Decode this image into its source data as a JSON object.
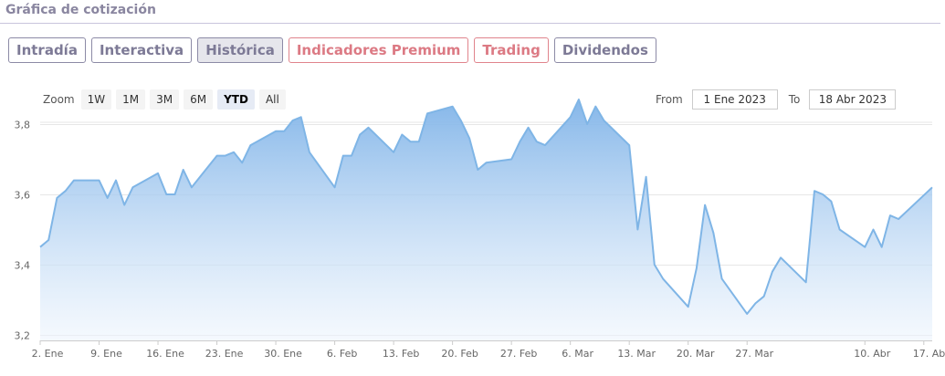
{
  "section": {
    "title": "Gráfica de cotización"
  },
  "tabs": [
    {
      "label": "Intradía",
      "premium": false,
      "active": false
    },
    {
      "label": "Interactiva",
      "premium": false,
      "active": false
    },
    {
      "label": "Histórica",
      "premium": false,
      "active": true
    },
    {
      "label": "Indicadores Premium",
      "premium": true,
      "active": false
    },
    {
      "label": "Trading",
      "premium": true,
      "active": false
    },
    {
      "label": "Dividendos",
      "premium": false,
      "active": false
    }
  ],
  "zoom": {
    "label": "Zoom",
    "buttons": [
      "1W",
      "1M",
      "3M",
      "6M",
      "YTD",
      "All"
    ],
    "selected": "YTD"
  },
  "range": {
    "from_label": "From",
    "from_value": "1 Ene 2023",
    "to_label": "To",
    "to_value": "18 Abr 2023"
  },
  "colors": {
    "line": "#7fb5e6",
    "fill_top": "#7fb3e8",
    "fill_bottom": "#eef5fd",
    "grid": "#e6e6e6",
    "tab_border": "#8c8aa6",
    "premium": "#dc7a84"
  },
  "chart_data": {
    "type": "area",
    "title": "",
    "xlabel": "",
    "ylabel": "",
    "ylim": [
      3.2,
      3.8
    ],
    "yticks": [
      {
        "value": 3.2,
        "label": "3,2"
      },
      {
        "value": 3.4,
        "label": "3,4"
      },
      {
        "value": 3.6,
        "label": "3,6"
      },
      {
        "value": 3.8,
        "label": "3,8"
      }
    ],
    "xlim": [
      "2023-01-02",
      "2023-04-18"
    ],
    "xticks": [
      {
        "date": "2023-01-02",
        "label": "2. Ene"
      },
      {
        "date": "2023-01-09",
        "label": "9. Ene"
      },
      {
        "date": "2023-01-16",
        "label": "16. Ene"
      },
      {
        "date": "2023-01-23",
        "label": "23. Ene"
      },
      {
        "date": "2023-01-30",
        "label": "30. Ene"
      },
      {
        "date": "2023-02-06",
        "label": "6. Feb"
      },
      {
        "date": "2023-02-13",
        "label": "13. Feb"
      },
      {
        "date": "2023-02-20",
        "label": "20. Feb"
      },
      {
        "date": "2023-02-27",
        "label": "27. Feb"
      },
      {
        "date": "2023-03-06",
        "label": "6. Mar"
      },
      {
        "date": "2023-03-13",
        "label": "13. Mar"
      },
      {
        "date": "2023-03-20",
        "label": "20. Mar"
      },
      {
        "date": "2023-03-27",
        "label": "27. Mar"
      },
      {
        "date": "2023-04-10",
        "label": "10. Abr"
      },
      {
        "date": "2023-04-17",
        "label": "17. Abr"
      }
    ],
    "grid": true,
    "series": [
      {
        "points": [
          [
            "2023-01-02",
            3.45
          ],
          [
            "2023-01-03",
            3.47
          ],
          [
            "2023-01-04",
            3.59
          ],
          [
            "2023-01-05",
            3.61
          ],
          [
            "2023-01-06",
            3.64
          ],
          [
            "2023-01-09",
            3.64
          ],
          [
            "2023-01-10",
            3.59
          ],
          [
            "2023-01-11",
            3.64
          ],
          [
            "2023-01-12",
            3.57
          ],
          [
            "2023-01-13",
            3.62
          ],
          [
            "2023-01-16",
            3.66
          ],
          [
            "2023-01-17",
            3.6
          ],
          [
            "2023-01-18",
            3.6
          ],
          [
            "2023-01-19",
            3.67
          ],
          [
            "2023-01-20",
            3.62
          ],
          [
            "2023-01-23",
            3.71
          ],
          [
            "2023-01-24",
            3.71
          ],
          [
            "2023-01-25",
            3.72
          ],
          [
            "2023-01-26",
            3.69
          ],
          [
            "2023-01-27",
            3.74
          ],
          [
            "2023-01-30",
            3.78
          ],
          [
            "2023-01-31",
            3.78
          ],
          [
            "2023-02-01",
            3.81
          ],
          [
            "2023-02-02",
            3.82
          ],
          [
            "2023-02-03",
            3.72
          ],
          [
            "2023-02-06",
            3.62
          ],
          [
            "2023-02-07",
            3.71
          ],
          [
            "2023-02-08",
            3.71
          ],
          [
            "2023-02-09",
            3.77
          ],
          [
            "2023-02-10",
            3.79
          ],
          [
            "2023-02-13",
            3.72
          ],
          [
            "2023-02-14",
            3.77
          ],
          [
            "2023-02-15",
            3.75
          ],
          [
            "2023-02-16",
            3.75
          ],
          [
            "2023-02-17",
            3.83
          ],
          [
            "2023-02-20",
            3.85
          ],
          [
            "2023-02-21",
            3.81
          ],
          [
            "2023-02-22",
            3.76
          ],
          [
            "2023-02-23",
            3.67
          ],
          [
            "2023-02-24",
            3.69
          ],
          [
            "2023-02-27",
            3.7
          ],
          [
            "2023-02-28",
            3.75
          ],
          [
            "2023-03-01",
            3.79
          ],
          [
            "2023-03-02",
            3.75
          ],
          [
            "2023-03-03",
            3.74
          ],
          [
            "2023-03-06",
            3.82
          ],
          [
            "2023-03-07",
            3.87
          ],
          [
            "2023-03-08",
            3.8
          ],
          [
            "2023-03-09",
            3.85
          ],
          [
            "2023-03-10",
            3.81
          ],
          [
            "2023-03-13",
            3.74
          ],
          [
            "2023-03-14",
            3.5
          ],
          [
            "2023-03-15",
            3.65
          ],
          [
            "2023-03-16",
            3.4
          ],
          [
            "2023-03-17",
            3.36
          ],
          [
            "2023-03-20",
            3.28
          ],
          [
            "2023-03-21",
            3.39
          ],
          [
            "2023-03-22",
            3.57
          ],
          [
            "2023-03-23",
            3.49
          ],
          [
            "2023-03-24",
            3.36
          ],
          [
            "2023-03-27",
            3.26
          ],
          [
            "2023-03-28",
            3.29
          ],
          [
            "2023-03-29",
            3.31
          ],
          [
            "2023-03-30",
            3.38
          ],
          [
            "2023-03-31",
            3.42
          ],
          [
            "2023-04-03",
            3.35
          ],
          [
            "2023-04-04",
            3.61
          ],
          [
            "2023-04-05",
            3.6
          ],
          [
            "2023-04-06",
            3.58
          ],
          [
            "2023-04-07",
            3.5
          ],
          [
            "2023-04-10",
            3.45
          ],
          [
            "2023-04-11",
            3.5
          ],
          [
            "2023-04-12",
            3.45
          ],
          [
            "2023-04-13",
            3.54
          ],
          [
            "2023-04-14",
            3.53
          ],
          [
            "2023-04-18",
            3.62
          ]
        ]
      }
    ]
  }
}
